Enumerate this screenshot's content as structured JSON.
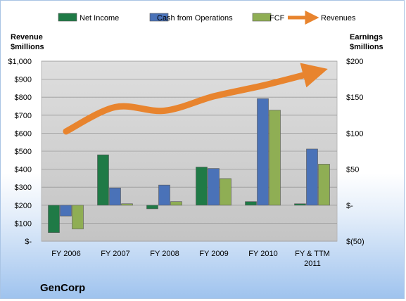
{
  "chart_data": {
    "type": "bar",
    "company": "GenCorp",
    "categories": [
      "FY 2006",
      "FY 2007",
      "FY 2008",
      "FY 2009",
      "FY 2010",
      "FY & TTM 2011"
    ],
    "series": [
      {
        "name": "Net Income",
        "axis": "right",
        "color": "#1f7a46",
        "values": [
          -38,
          70,
          -5,
          53,
          5,
          2
        ]
      },
      {
        "name": "Cash from Operations",
        "axis": "right",
        "color": "#4a72b8",
        "values": [
          -15,
          24,
          28,
          51,
          148,
          78
        ]
      },
      {
        "name": "FCF",
        "axis": "right",
        "color": "#8fae54",
        "values": [
          -33,
          2,
          5,
          37,
          132,
          57
        ]
      },
      {
        "name": "Revenues",
        "axis": "left",
        "type": "line",
        "color": "#e8842e",
        "values": [
          610,
          745,
          725,
          805,
          865,
          935
        ]
      }
    ],
    "left_axis": {
      "label": "Revenue\n$millions",
      "ylim": [
        0,
        1000
      ],
      "ticks": [
        "$-",
        "$100",
        "$200",
        "$300",
        "$400",
        "$500",
        "$600",
        "$700",
        "$800",
        "$900",
        "$1,000"
      ]
    },
    "right_axis": {
      "label": "Earnings\n$millions",
      "ylim": [
        -50,
        200
      ],
      "ticks": [
        "$(50)",
        "$-",
        "$50",
        "$100",
        "$150",
        "$200"
      ]
    },
    "legend_position": "top",
    "grid": true
  }
}
